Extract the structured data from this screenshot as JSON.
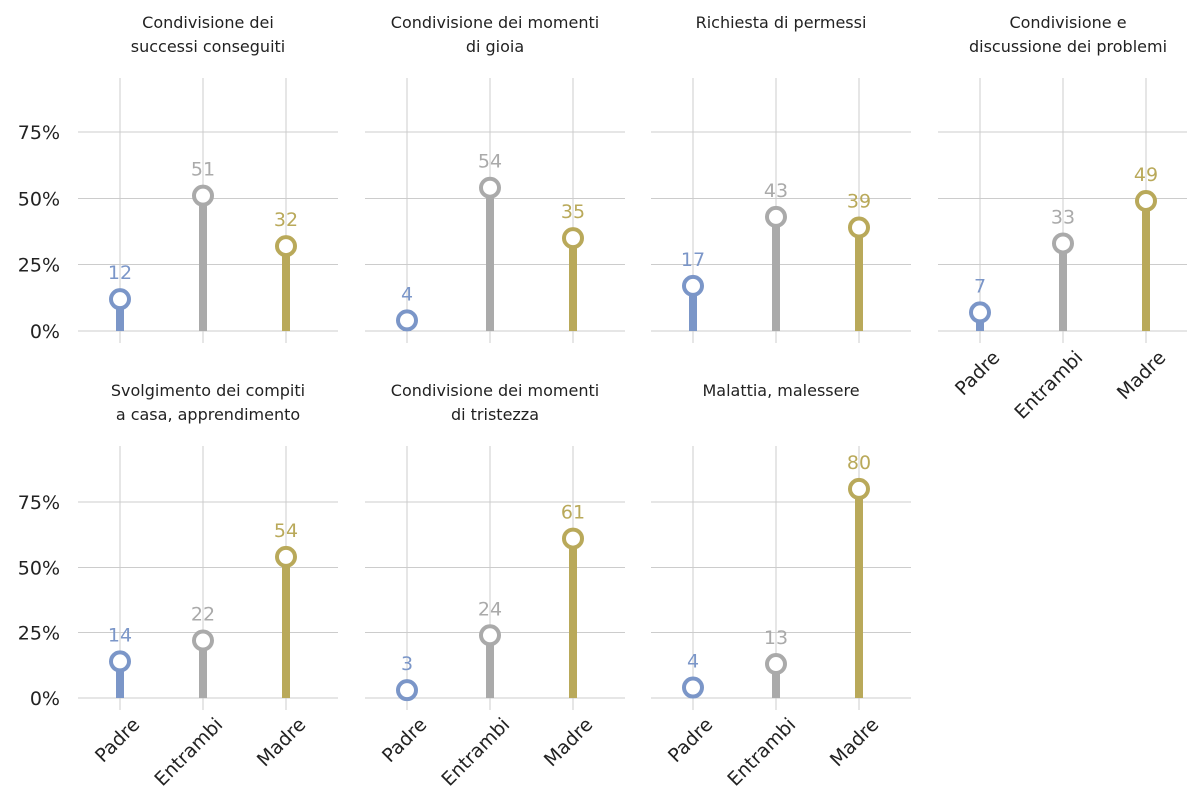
{
  "chart_data": {
    "type": "lollipop",
    "ylim": [
      0,
      100
    ],
    "yticks": [
      "0%",
      "25%",
      "50%",
      "75%"
    ],
    "categories": [
      "Padre",
      "Entrambi",
      "Madre"
    ],
    "colors": {
      "Padre": "#7B96C8",
      "Entrambi": "#AAAAAA",
      "Madre": "#B9A95A"
    },
    "grid": true,
    "panels": [
      {
        "title_lines": [
          "Condivisione dei",
          "successi conseguiti"
        ],
        "values": [
          12,
          51,
          32
        ]
      },
      {
        "title_lines": [
          "Condivisione dei momenti",
          "di gioia"
        ],
        "values": [
          4,
          54,
          35
        ]
      },
      {
        "title_lines": [
          "Richiesta di permessi"
        ],
        "values": [
          17,
          43,
          39
        ]
      },
      {
        "title_lines": [
          "Condivisione e",
          "discussione dei problemi"
        ],
        "values": [
          7,
          33,
          49
        ]
      },
      {
        "title_lines": [
          "Svolgimento dei compiti",
          "a casa, apprendimento"
        ],
        "values": [
          14,
          22,
          54
        ]
      },
      {
        "title_lines": [
          "Condivisione dei momenti",
          "di tristezza"
        ],
        "values": [
          3,
          24,
          61
        ]
      },
      {
        "title_lines": [
          "Malattia, malessere"
        ],
        "values": [
          4,
          13,
          80
        ]
      }
    ]
  }
}
